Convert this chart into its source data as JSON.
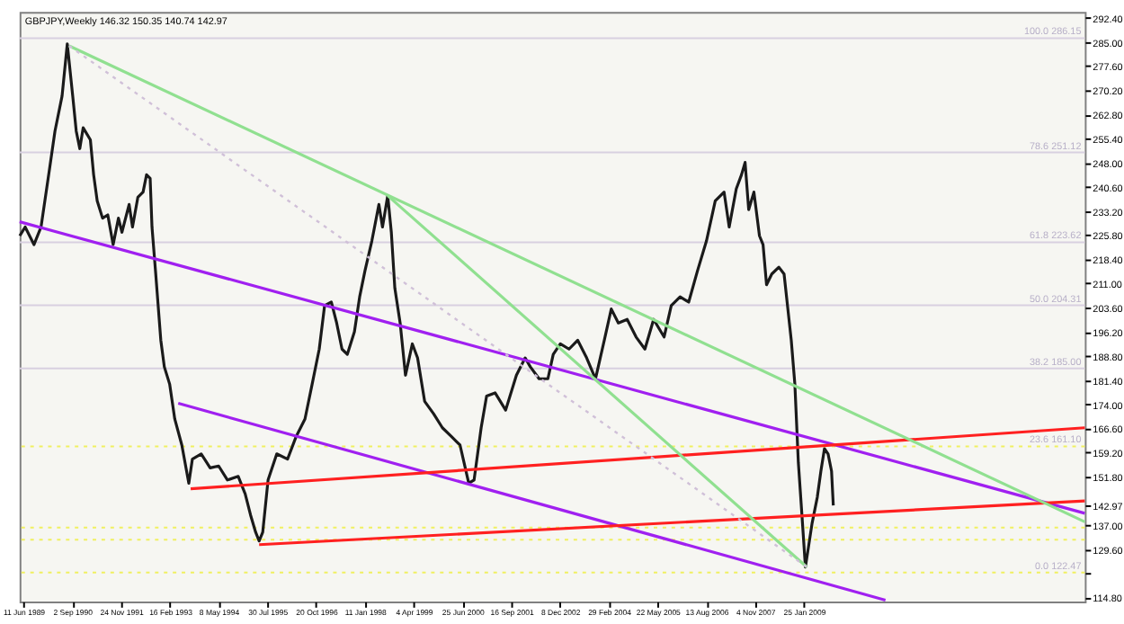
{
  "chart_data": {
    "type": "line",
    "title": "GBPJPY,Weekly  146.32 150.35 140.74 142.97",
    "xlim": [
      "1989-05-07",
      "2016-02-18"
    ],
    "ylim": [
      113.6,
      294.2
    ],
    "xticks": [
      {
        "value": "1989-06-11",
        "label": "11 Jun 1989"
      },
      {
        "value": "1990-09-02",
        "label": "2 Sep 1990"
      },
      {
        "value": "1991-11-24",
        "label": "24 Nov 1991"
      },
      {
        "value": "1993-02-16",
        "label": "16 Feb 1993"
      },
      {
        "value": "1994-05-08",
        "label": "8 May 1994"
      },
      {
        "value": "1995-07-30",
        "label": "30 Jul 1995"
      },
      {
        "value": "1996-10-20",
        "label": "20 Oct 1996"
      },
      {
        "value": "1998-01-11",
        "label": "11 Jan 1998"
      },
      {
        "value": "1999-04-04",
        "label": "4 Apr 1999"
      },
      {
        "value": "2000-06-25",
        "label": "25 Jun 2000"
      },
      {
        "value": "2001-09-16",
        "label": "16 Sep 2001"
      },
      {
        "value": "2002-12-08",
        "label": "8 Dec 2002"
      },
      {
        "value": "2004-02-29",
        "label": "29 Feb 2004"
      },
      {
        "value": "2005-05-22",
        "label": "22 May 2005"
      },
      {
        "value": "2006-08-13",
        "label": "13 Aug 2006"
      },
      {
        "value": "2007-11-04",
        "label": "4 Nov 2007"
      },
      {
        "value": "2009-01-25",
        "label": "25 Jan 2009"
      }
    ],
    "yticks": [
      {
        "value": 114.8,
        "label": "114.80"
      },
      {
        "value": 122.2,
        "label": null
      },
      {
        "value": 129.6,
        "label": "129.60"
      },
      {
        "value": 137.0,
        "label": "137.00"
      },
      {
        "value": 142.97,
        "label": "142.97"
      },
      {
        "value": 151.8,
        "label": "151.80"
      },
      {
        "value": 159.2,
        "label": "159.20"
      },
      {
        "value": 166.6,
        "label": "166.60"
      },
      {
        "value": 174.0,
        "label": "174.00"
      },
      {
        "value": 181.4,
        "label": "181.40"
      },
      {
        "value": 188.8,
        "label": "188.80"
      },
      {
        "value": 196.2,
        "label": "196.20"
      },
      {
        "value": 203.6,
        "label": "203.60"
      },
      {
        "value": 211.0,
        "label": "211.00"
      },
      {
        "value": 218.4,
        "label": "218.40"
      },
      {
        "value": 225.8,
        "label": "225.80"
      },
      {
        "value": 233.2,
        "label": "233.20"
      },
      {
        "value": 240.6,
        "label": "240.60"
      },
      {
        "value": 248.0,
        "label": "248.00"
      },
      {
        "value": 255.4,
        "label": "255.40"
      },
      {
        "value": 262.8,
        "label": "262.80"
      },
      {
        "value": 270.2,
        "label": "270.20"
      },
      {
        "value": 277.6,
        "label": "277.60"
      },
      {
        "value": 285.0,
        "label": "285.00"
      },
      {
        "value": 292.4,
        "label": "292.40"
      }
    ],
    "grid": false,
    "series": [
      {
        "color": "#1a1a1a",
        "x": [
          "1989-05-09",
          "1989-06-27",
          "1989-09-16",
          "1989-11-20",
          "1990-02-10",
          "1990-03-28",
          "1990-06-01",
          "1990-07-19",
          "1990-09-07",
          "1990-10-09",
          "1990-11-11",
          "1990-12-12",
          "1991-02-16",
          "1991-03-18",
          "1991-04-20",
          "1991-06-08",
          "1991-07-26",
          "1991-09-13",
          "1991-11-01",
          "1991-12-03",
          "1992-02-07",
          "1992-03-09",
          "1992-04-27",
          "1992-06-14",
          "1992-07-16",
          "1992-08-18",
          "1992-09-04",
          "1992-10-06",
          "1992-11-24",
          "1992-12-26",
          "1993-02-13",
          "1993-04-01",
          "1993-06-05",
          "1993-08-08",
          "1993-09-10",
          "1993-11-30",
          "1994-02-20",
          "1994-05-09",
          "1994-07-29",
          "1994-11-05",
          "1995-01-08",
          "1995-02-26",
          "1995-04-14",
          "1995-05-16",
          "1995-06-18",
          "1995-08-06",
          "1995-10-25",
          "1996-02-01",
          "1996-04-21",
          "1996-07-10",
          "1996-09-14",
          "1996-11-18",
          "1997-01-06",
          "1997-03-09",
          "1997-04-27",
          "1997-06-15",
          "1997-08-03",
          "1997-10-07",
          "1997-11-24",
          "1998-01-12",
          "1998-03-16",
          "1998-05-20",
          "1998-06-22",
          "1998-08-09",
          "1998-09-11",
          "1998-10-13",
          "1998-12-01",
          "1999-01-19",
          "1999-03-23",
          "1999-05-10",
          "1999-07-14",
          "1999-10-04",
          "1999-12-24",
          "2000-03-13",
          "2000-06-03",
          "2000-08-22",
          "2000-10-10",
          "2000-12-14",
          "2001-02-02",
          "2001-04-21",
          "2001-07-27",
          "2001-11-03",
          "2002-01-22",
          "2002-03-10",
          "2002-05-30",
          "2002-08-19",
          "2002-10-07",
          "2002-12-11",
          "2003-03-01",
          "2003-05-20",
          "2003-08-10",
          "2003-10-30",
          "2004-01-19",
          "2004-03-23",
          "2004-05-27",
          "2004-08-16",
          "2004-11-06",
          "2005-01-26",
          "2005-04-16",
          "2005-07-21",
          "2005-09-25",
          "2005-12-15",
          "2006-03-04",
          "2006-05-24",
          "2006-08-14",
          "2006-11-03",
          "2007-01-23",
          "2007-03-11",
          "2007-05-15",
          "2007-07-02",
          "2007-08-04",
          "2007-09-06",
          "2007-10-24",
          "2007-12-14",
          "2008-01-16",
          "2008-02-17",
          "2008-04-05",
          "2008-06-09",
          "2008-07-27",
          "2008-10-01",
          "2008-11-03",
          "2008-12-05",
          "2009-01-07",
          "2009-02-08",
          "2009-04-10",
          "2009-05-28",
          "2009-06-30",
          "2009-08-02",
          "2009-09-04",
          "2009-10-06",
          "2009-10-22"
        ],
        "values": [
          225.6,
          228.3,
          222.9,
          228.3,
          247.0,
          257.7,
          268.4,
          284.4,
          268.4,
          257.7,
          252.3,
          258.7,
          255.0,
          244.3,
          236.3,
          231.0,
          232.0,
          222.9,
          231.0,
          226.7,
          235.2,
          228.3,
          237.4,
          239.0,
          244.3,
          243.2,
          228.3,
          214.9,
          193.6,
          185.5,
          180.2,
          169.5,
          161.5,
          149.8,
          157.2,
          158.8,
          154.5,
          155.1,
          150.8,
          151.9,
          146.5,
          140.1,
          134.8,
          132.1,
          134.8,
          150.8,
          158.8,
          157.2,
          164.2,
          169.5,
          180.2,
          190.9,
          204.2,
          205.3,
          198.9,
          190.9,
          189.3,
          196.2,
          206.9,
          214.9,
          224.0,
          235.2,
          228.3,
          237.9,
          226.7,
          209.6,
          198.9,
          182.9,
          192.5,
          188.2,
          174.9,
          171.1,
          166.8,
          164.2,
          161.5,
          149.8,
          150.8,
          166.8,
          176.5,
          177.5,
          172.2,
          182.9,
          188.2,
          185.5,
          181.8,
          181.8,
          189.3,
          192.5,
          190.9,
          193.6,
          188.2,
          181.8,
          193.6,
          203.2,
          198.9,
          200.0,
          194.6,
          190.9,
          200.0,
          194.6,
          204.2,
          206.9,
          205.3,
          214.9,
          224.0,
          236.3,
          239.0,
          228.3,
          240.0,
          244.3,
          248.1,
          233.6,
          239.0,
          225.6,
          222.9,
          210.6,
          213.9,
          216.0,
          213.9,
          193.6,
          180.2,
          156.2,
          140.1,
          124.1,
          137.5,
          145.5,
          153.5,
          160.4,
          158.8,
          153.5,
          143.0
        ]
      },
      {
        "color": "#a020f0",
        "x": [
          "1989-05-07",
          "2016-02-18"
        ],
        "values": [
          229.9,
          140.6
        ]
      },
      {
        "color": "#a020f0",
        "x": [
          "1993-05-03",
          "2011-02-13"
        ],
        "values": [
          174.3,
          114.0
        ]
      },
      {
        "color": "#ff2020",
        "x": [
          "1993-08-25",
          "2016-02-18"
        ],
        "values": [
          148.1,
          166.8
        ]
      },
      {
        "color": "#ff2020",
        "x": [
          "1995-05-16",
          "2016-02-18"
        ],
        "values": [
          131.0,
          144.4
        ]
      },
      {
        "color": "#90e090",
        "x": [
          "1990-08-05",
          "2016-02-18"
        ],
        "values": [
          283.8,
          138.0
        ]
      },
      {
        "color": "#90e090",
        "x": [
          "1998-08-09",
          "2009-02-22"
        ],
        "values": [
          237.9,
          124.1
        ]
      },
      {
        "color": "#d0c0d8",
        "line_style": "dotted",
        "x": [
          "1990-08-05",
          "2009-02-22"
        ],
        "values": [
          283.8,
          124.1
        ]
      }
    ],
    "ref_lines": [
      {
        "axis": "y",
        "value": 286.15,
        "label": "100.0 286.15",
        "color": "#d8d0e0"
      },
      {
        "axis": "y",
        "value": 251.12,
        "label": "78.6 251.12",
        "color": "#d8d0e0"
      },
      {
        "axis": "y",
        "value": 223.62,
        "label": "61.8 223.62",
        "color": "#d8d0e0"
      },
      {
        "axis": "y",
        "value": 204.31,
        "label": "50.0 204.31",
        "color": "#d8d0e0"
      },
      {
        "axis": "y",
        "value": 185.0,
        "label": "38.2 185.00",
        "color": "#d8d0e0"
      },
      {
        "axis": "y",
        "value": 161.1,
        "label": "23.6 161.10",
        "color": "#f0f060",
        "line_style": "dotted"
      },
      {
        "axis": "y",
        "value": 136.2,
        "color": "#f0f060",
        "line_style": "dotted"
      },
      {
        "axis": "y",
        "value": 132.5,
        "color": "#f0f060",
        "line_style": "dotted"
      },
      {
        "axis": "y",
        "value": 122.47,
        "label": "0.0 122.47",
        "color": "#f0f060",
        "line_style": "dotted"
      }
    ]
  }
}
